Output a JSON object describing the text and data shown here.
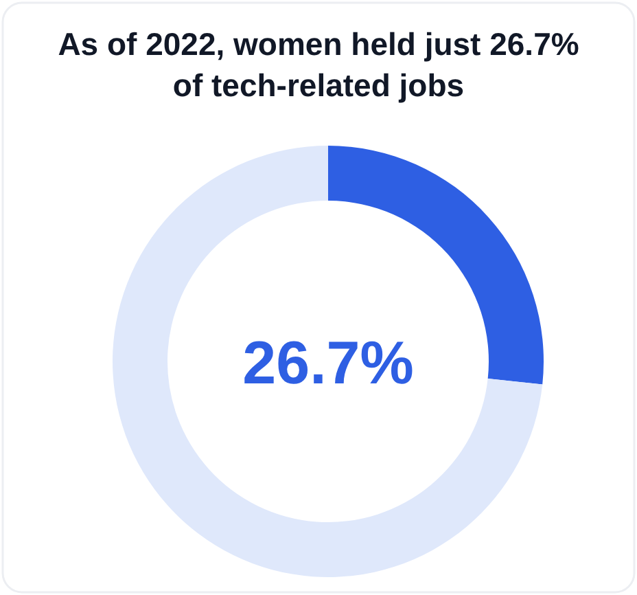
{
  "chart_data": {
    "type": "donut",
    "title": "As of 2022, women held just 26.7% of tech-related jobs",
    "categories": [
      null,
      null
    ],
    "values": [
      26.7,
      73.3
    ],
    "colors": [
      "#2e5fe3",
      "#dfe8fb"
    ],
    "annotations": [
      "26.7%"
    ]
  }
}
